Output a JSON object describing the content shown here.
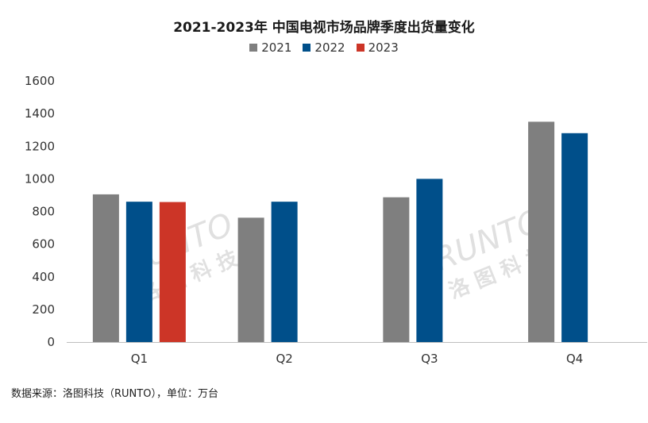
{
  "chart_data": {
    "type": "bar",
    "title": "2021-2023年 中国电视市场品牌季度出货量变化",
    "categories": [
      "Q1",
      "Q2",
      "Q3",
      "Q4"
    ],
    "series": [
      {
        "name": "2021",
        "color": "#7f7f7f",
        "values": [
          905,
          762,
          887,
          1350
        ]
      },
      {
        "name": "2022",
        "color": "#004f8a",
        "values": [
          860,
          860,
          1000,
          1280
        ]
      },
      {
        "name": "2023",
        "color": "#cc3527",
        "values": [
          858,
          null,
          null,
          null
        ]
      }
    ],
    "yticks": [
      0,
      200,
      400,
      600,
      800,
      1000,
      1200,
      1400,
      1600
    ],
    "ylim": [
      0,
      1600
    ],
    "xlabel": "",
    "ylabel": "",
    "grid": false,
    "legend_position": "top-center"
  },
  "source_note": "数据来源：洛图科技（RUNTO），单位：万台",
  "watermark": {
    "latin": "RUNTO",
    "cjk": "洛 图 科 技"
  }
}
